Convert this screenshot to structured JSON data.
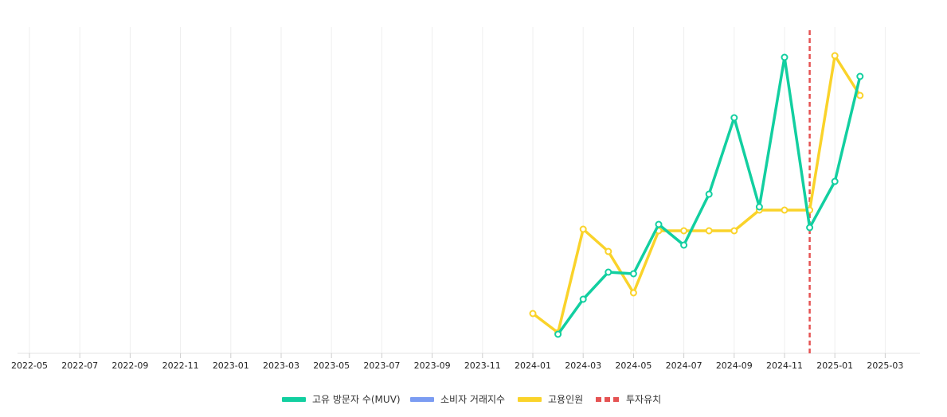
{
  "chart_data": {
    "type": "line",
    "x_ticks": [
      "2022-05",
      "2022-07",
      "2022-09",
      "2022-11",
      "2023-01",
      "2023-03",
      "2023-05",
      "2023-07",
      "2023-09",
      "2023-11",
      "2024-01",
      "2024-03",
      "2024-05",
      "2024-07",
      "2024-09",
      "2024-11",
      "2025-01",
      "2025-03"
    ],
    "x": [
      "2024-01",
      "2024-02",
      "2024-03",
      "2024-04",
      "2024-05",
      "2024-06",
      "2024-07",
      "2024-08",
      "2024-09",
      "2024-10",
      "2024-11",
      "2024-12",
      "2025-01",
      "2025-02"
    ],
    "ylim": [
      0,
      100
    ],
    "grid": "vertical",
    "legend_position": "bottom",
    "series": [
      {
        "name": "고유 방문자 수(MUV)",
        "color": "#12CFA0",
        "values": [
          null,
          6,
          17,
          25.5,
          25,
          40.5,
          34,
          50,
          74,
          46,
          93,
          39.5,
          54,
          87
        ]
      },
      {
        "name": "소비자 거래지수",
        "color": "#7B9CF2",
        "values": [
          null,
          null,
          null,
          null,
          null,
          null,
          null,
          null,
          null,
          null,
          null,
          null,
          null,
          null
        ]
      },
      {
        "name": "고용인원",
        "color": "#FAD32A",
        "values": [
          12.5,
          6.5,
          39,
          32,
          19,
          38.5,
          38.5,
          38.5,
          38.5,
          45,
          45,
          45,
          93.5,
          81
        ]
      }
    ],
    "markers": [
      {
        "name": "투자유치",
        "x": "2024-12",
        "color": "#E55353",
        "style": "dashed"
      }
    ]
  }
}
